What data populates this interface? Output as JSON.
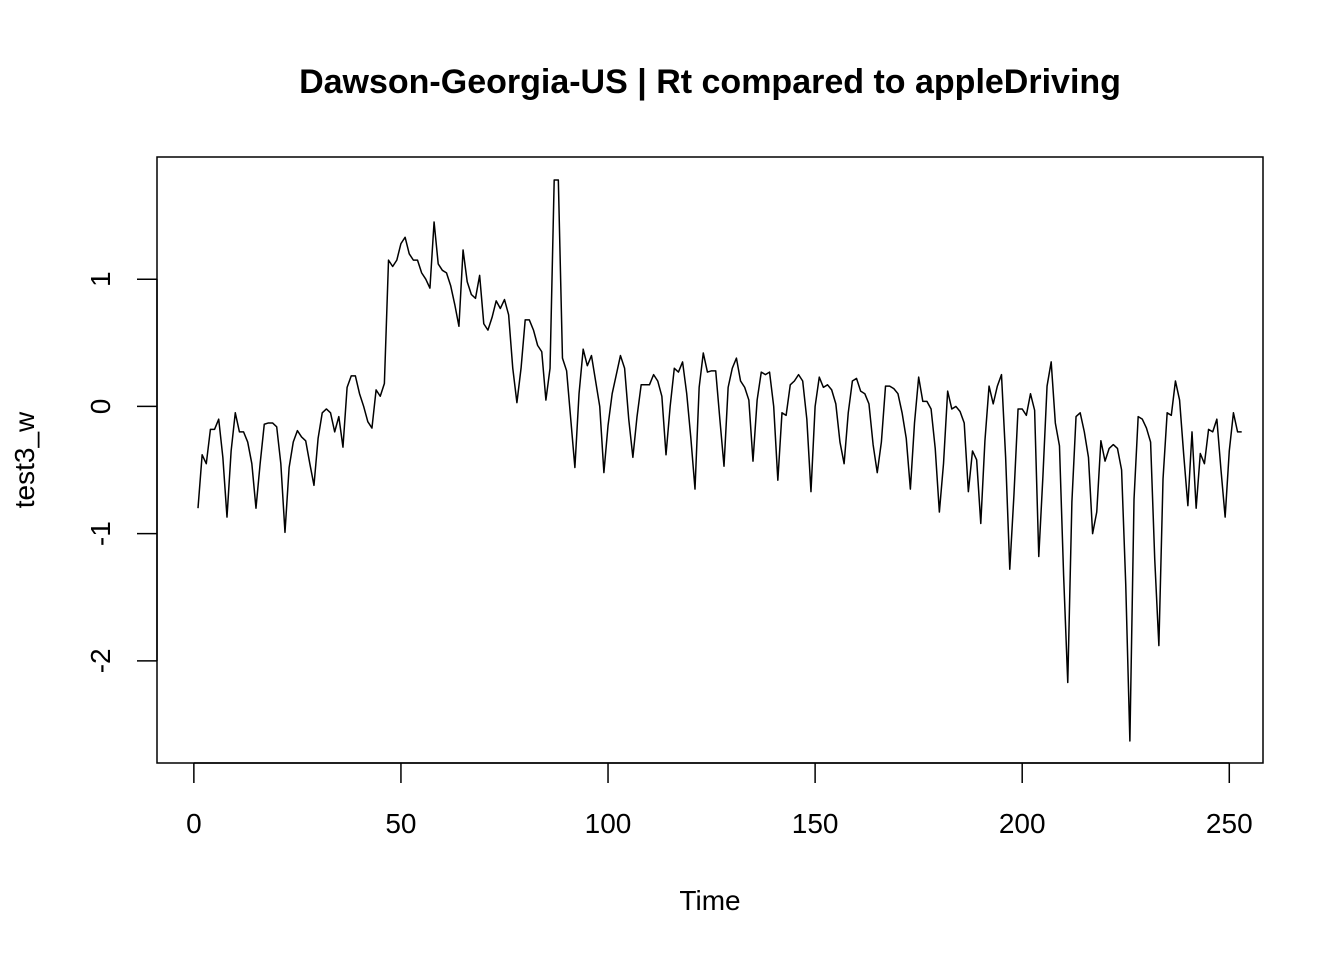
{
  "chart_data": {
    "type": "line",
    "title": "Dawson-Georgia-US | Rt compared to appleDriving",
    "xlabel": "Time",
    "ylabel": "test3_w",
    "xlim": [
      1,
      248
    ],
    "ylim": [
      -2.63,
      1.78
    ],
    "xticks": [
      0,
      50,
      100,
      150,
      200,
      250
    ],
    "yticks": [
      -2,
      -1,
      0,
      1
    ],
    "xtick_labels": [
      "0",
      "50",
      "100",
      "150",
      "200",
      "250"
    ],
    "ytick_labels": [
      "-2",
      "-1",
      "0",
      "1"
    ],
    "grid": false,
    "legend": "none",
    "line_color": "#000000",
    "series": [
      {
        "x_start": 1,
        "x_step": 1,
        "values": [
          -0.8,
          -0.38,
          -0.45,
          -0.18,
          -0.18,
          -0.1,
          -0.4,
          -0.87,
          -0.35,
          -0.05,
          -0.2,
          -0.2,
          -0.28,
          -0.45,
          -0.8,
          -0.45,
          -0.14,
          -0.13,
          -0.13,
          -0.16,
          -0.45,
          -0.99,
          -0.48,
          -0.28,
          -0.19,
          -0.24,
          -0.27,
          -0.45,
          -0.62,
          -0.25,
          -0.05,
          -0.02,
          -0.05,
          -0.2,
          -0.08,
          -0.32,
          0.15,
          0.24,
          0.24,
          0.1,
          0.0,
          -0.12,
          -0.17,
          0.13,
          0.08,
          0.18,
          1.15,
          1.1,
          1.15,
          1.28,
          1.33,
          1.2,
          1.15,
          1.15,
          1.05,
          1.0,
          0.93,
          1.45,
          1.12,
          1.07,
          1.05,
          0.95,
          0.8,
          0.63,
          1.23,
          0.98,
          0.88,
          0.85,
          1.03,
          0.65,
          0.6,
          0.7,
          0.83,
          0.77,
          0.84,
          0.72,
          0.3,
          0.03,
          0.3,
          0.68,
          0.68,
          0.6,
          0.48,
          0.43,
          0.05,
          0.3,
          1.78,
          1.78,
          0.38,
          0.28,
          -0.1,
          -0.48,
          0.1,
          0.45,
          0.32,
          0.4,
          0.2,
          0.0,
          -0.52,
          -0.15,
          0.1,
          0.25,
          0.4,
          0.3,
          -0.1,
          -0.4,
          -0.08,
          0.17,
          0.17,
          0.17,
          0.25,
          0.2,
          0.08,
          -0.38,
          0.0,
          0.3,
          0.27,
          0.35,
          0.1,
          -0.25,
          -0.65,
          0.15,
          0.42,
          0.27,
          0.28,
          0.28,
          -0.1,
          -0.47,
          0.15,
          0.3,
          0.38,
          0.2,
          0.15,
          0.05,
          -0.43,
          0.05,
          0.27,
          0.25,
          0.27,
          0.0,
          -0.58,
          -0.05,
          -0.07,
          0.17,
          0.2,
          0.25,
          0.2,
          -0.1,
          -0.67,
          0.0,
          0.23,
          0.15,
          0.17,
          0.13,
          0.02,
          -0.28,
          -0.45,
          -0.05,
          0.2,
          0.22,
          0.12,
          0.1,
          0.02,
          -0.3,
          -0.52,
          -0.28,
          0.16,
          0.16,
          0.14,
          0.1,
          -0.05,
          -0.25,
          -0.65,
          -0.13,
          0.23,
          0.04,
          0.04,
          -0.02,
          -0.33,
          -0.83,
          -0.45,
          0.12,
          -0.02,
          0.0,
          -0.04,
          -0.13,
          -0.67,
          -0.35,
          -0.42,
          -0.92,
          -0.27,
          0.16,
          0.02,
          0.16,
          0.25,
          -0.4,
          -1.28,
          -0.7,
          -0.02,
          -0.02,
          -0.07,
          0.1,
          -0.03,
          -1.18,
          -0.55,
          0.16,
          0.35,
          -0.13,
          -0.31,
          -1.33,
          -2.17,
          -0.75,
          -0.08,
          -0.05,
          -0.2,
          -0.4,
          -1.0,
          -0.83,
          -0.27,
          -0.43,
          -0.33,
          -0.3,
          -0.33,
          -0.5,
          -1.4,
          -2.63,
          -0.73,
          -0.08,
          -0.1,
          -0.17,
          -0.28,
          -1.2,
          -1.88,
          -0.57,
          -0.05,
          -0.07,
          0.2,
          0.05,
          -0.38,
          -0.78,
          -0.2,
          -0.8,
          -0.37,
          -0.45,
          -0.18,
          -0.2,
          -0.1,
          -0.5,
          -0.87,
          -0.35,
          -0.05,
          -0.2,
          -0.2
        ]
      }
    ]
  }
}
